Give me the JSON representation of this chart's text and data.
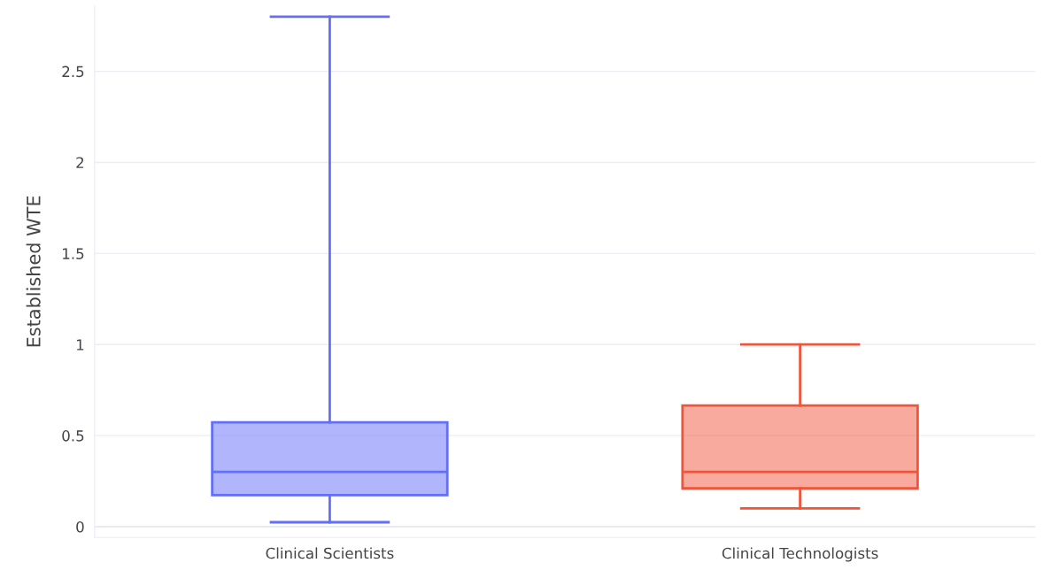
{
  "chart_data": {
    "type": "box",
    "ylabel": "Established WTE",
    "categories": [
      "Clinical Scientists",
      "Clinical Technologists"
    ],
    "boxes": [
      {
        "low": 0.024,
        "q1": 0.173,
        "median": 0.3,
        "q3": 0.573,
        "high": 2.8
      },
      {
        "low": 0.1,
        "q1": 0.21,
        "median": 0.3,
        "q3": 0.665,
        "high": 1.0
      }
    ],
    "colors": [
      "#636efa",
      "#ef553b"
    ],
    "ylim": [
      -0.06,
      2.86
    ],
    "yticks": [
      0,
      0.5,
      1,
      1.5,
      2,
      2.5
    ],
    "grid": "y",
    "legend": false
  }
}
